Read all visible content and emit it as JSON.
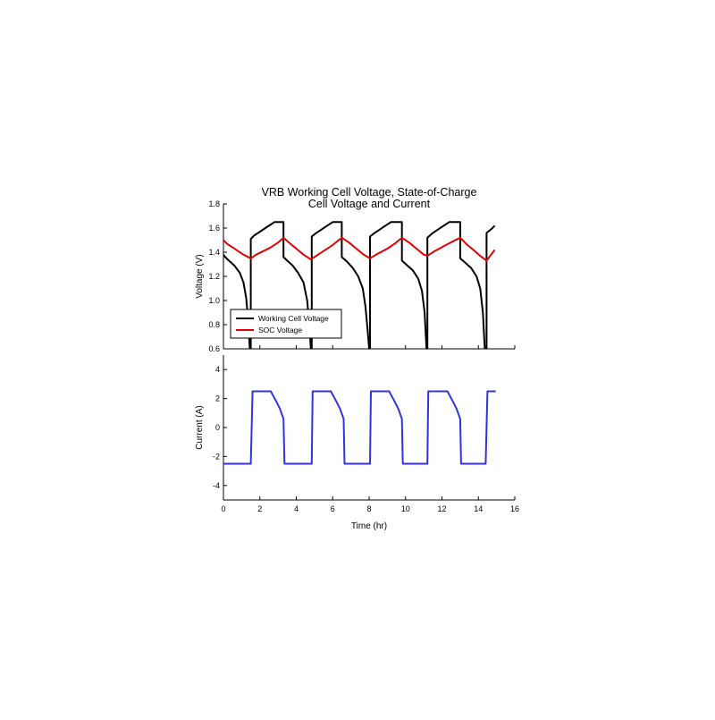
{
  "chart_data": [
    {
      "type": "line",
      "title": "VRB Working Cell Voltage, State-of-Charge",
      "subtitle": "Cell Voltage and Current",
      "xlabel": "",
      "ylabel": "Voltage (V)",
      "xlim": [
        0,
        16
      ],
      "ylim": [
        0.6,
        1.8
      ],
      "yticks": [
        "0.6",
        "0.8",
        "1.0",
        "1.2",
        "1.4",
        "1.6",
        "1.8"
      ],
      "grid": false,
      "legend": "bottom-left",
      "series": [
        {
          "name": "Working Cell Voltage",
          "color": "#000000",
          "points": [
            [
              0,
              1.38
            ],
            [
              0.1,
              1.36
            ],
            [
              0.3,
              1.33
            ],
            [
              0.6,
              1.29
            ],
            [
              0.9,
              1.23
            ],
            [
              1.1,
              1.15
            ],
            [
              1.25,
              1.02
            ],
            [
              1.35,
              0.85
            ],
            [
              1.45,
              0.6
            ],
            [
              1.5,
              0.6
            ],
            [
              1.5,
              1.51
            ],
            [
              1.7,
              1.54
            ],
            [
              2.0,
              1.57
            ],
            [
              2.3,
              1.6
            ],
            [
              2.6,
              1.63
            ],
            [
              2.8,
              1.65
            ],
            [
              3.3,
              1.65
            ],
            [
              3.3,
              1.36
            ],
            [
              3.5,
              1.33
            ],
            [
              3.8,
              1.29
            ],
            [
              4.1,
              1.23
            ],
            [
              4.4,
              1.15
            ],
            [
              4.6,
              1.0
            ],
            [
              4.72,
              0.8
            ],
            [
              4.8,
              0.6
            ],
            [
              4.85,
              0.6
            ],
            [
              4.85,
              1.53
            ],
            [
              5.1,
              1.56
            ],
            [
              5.4,
              1.59
            ],
            [
              5.7,
              1.62
            ],
            [
              6.0,
              1.65
            ],
            [
              6.5,
              1.65
            ],
            [
              6.5,
              1.36
            ],
            [
              6.8,
              1.32
            ],
            [
              7.1,
              1.27
            ],
            [
              7.4,
              1.2
            ],
            [
              7.65,
              1.1
            ],
            [
              7.8,
              0.95
            ],
            [
              7.92,
              0.75
            ],
            [
              8.0,
              0.6
            ],
            [
              8.05,
              0.6
            ],
            [
              8.05,
              1.53
            ],
            [
              8.3,
              1.56
            ],
            [
              8.6,
              1.59
            ],
            [
              8.9,
              1.62
            ],
            [
              9.2,
              1.65
            ],
            [
              9.8,
              1.65
            ],
            [
              9.8,
              1.33
            ],
            [
              10.1,
              1.29
            ],
            [
              10.4,
              1.25
            ],
            [
              10.7,
              1.18
            ],
            [
              10.9,
              1.08
            ],
            [
              11.05,
              0.9
            ],
            [
              11.15,
              0.6
            ],
            [
              11.2,
              0.6
            ],
            [
              11.2,
              1.52
            ],
            [
              11.5,
              1.56
            ],
            [
              11.8,
              1.59
            ],
            [
              12.1,
              1.62
            ],
            [
              12.4,
              1.65
            ],
            [
              13.0,
              1.65
            ],
            [
              13.0,
              1.35
            ],
            [
              13.3,
              1.31
            ],
            [
              13.6,
              1.27
            ],
            [
              13.9,
              1.2
            ],
            [
              14.1,
              1.1
            ],
            [
              14.25,
              0.9
            ],
            [
              14.35,
              0.6
            ],
            [
              14.45,
              0.6
            ],
            [
              14.45,
              1.56
            ],
            [
              14.7,
              1.59
            ],
            [
              14.9,
              1.62
            ]
          ]
        },
        {
          "name": "SOC Voltage",
          "color": "#e00000",
          "points": [
            [
              0,
              1.5
            ],
            [
              0.2,
              1.47
            ],
            [
              0.5,
              1.44
            ],
            [
              0.8,
              1.41
            ],
            [
              1.1,
              1.38
            ],
            [
              1.5,
              1.35
            ],
            [
              1.8,
              1.38
            ],
            [
              2.2,
              1.41
            ],
            [
              2.6,
              1.44
            ],
            [
              3.0,
              1.48
            ],
            [
              3.3,
              1.52
            ],
            [
              3.6,
              1.48
            ],
            [
              4.0,
              1.43
            ],
            [
              4.4,
              1.38
            ],
            [
              4.8,
              1.34
            ],
            [
              5.2,
              1.38
            ],
            [
              5.6,
              1.42
            ],
            [
              6.0,
              1.46
            ],
            [
              6.5,
              1.52
            ],
            [
              6.9,
              1.48
            ],
            [
              7.3,
              1.43
            ],
            [
              7.7,
              1.38
            ],
            [
              8.05,
              1.35
            ],
            [
              8.5,
              1.39
            ],
            [
              9.0,
              1.43
            ],
            [
              9.4,
              1.47
            ],
            [
              9.8,
              1.52
            ],
            [
              10.2,
              1.48
            ],
            [
              10.6,
              1.43
            ],
            [
              11.0,
              1.38
            ],
            [
              11.2,
              1.37
            ],
            [
              11.6,
              1.41
            ],
            [
              12.1,
              1.45
            ],
            [
              12.6,
              1.49
            ],
            [
              13.0,
              1.52
            ],
            [
              13.4,
              1.46
            ],
            [
              13.8,
              1.41
            ],
            [
              14.1,
              1.37
            ],
            [
              14.45,
              1.33
            ],
            [
              14.7,
              1.38
            ],
            [
              14.9,
              1.42
            ]
          ]
        }
      ]
    },
    {
      "type": "line",
      "title": "",
      "xlabel": "Time (hr)",
      "ylabel": "Current (A)",
      "xlim": [
        0,
        16
      ],
      "ylim": [
        -5,
        5
      ],
      "xticks": [
        "0",
        "2",
        "4",
        "6",
        "8",
        "10",
        "12",
        "14",
        "16"
      ],
      "yticks": [
        "-4",
        "-2",
        "0",
        "2",
        "4"
      ],
      "grid": false,
      "series": [
        {
          "color": "#3333dd",
          "points": [
            [
              0,
              -2.5
            ],
            [
              1.5,
              -2.5
            ],
            [
              1.6,
              2.5
            ],
            [
              2.6,
              2.5
            ],
            [
              2.9,
              1.8
            ],
            [
              3.1,
              1.3
            ],
            [
              3.3,
              0.6
            ],
            [
              3.35,
              -2.5
            ],
            [
              4.85,
              -2.5
            ],
            [
              4.9,
              2.5
            ],
            [
              5.9,
              2.5
            ],
            [
              6.2,
              1.8
            ],
            [
              6.4,
              1.3
            ],
            [
              6.6,
              0.6
            ],
            [
              6.65,
              -2.5
            ],
            [
              8.05,
              -2.5
            ],
            [
              8.1,
              2.5
            ],
            [
              9.1,
              2.5
            ],
            [
              9.4,
              1.8
            ],
            [
              9.6,
              1.3
            ],
            [
              9.8,
              0.6
            ],
            [
              9.85,
              -2.5
            ],
            [
              11.2,
              -2.5
            ],
            [
              11.25,
              2.5
            ],
            [
              12.3,
              2.5
            ],
            [
              12.6,
              1.8
            ],
            [
              12.8,
              1.3
            ],
            [
              13.0,
              0.6
            ],
            [
              13.05,
              -2.5
            ],
            [
              14.4,
              -2.5
            ],
            [
              14.5,
              2.5
            ],
            [
              14.95,
              2.5
            ]
          ]
        }
      ]
    }
  ]
}
